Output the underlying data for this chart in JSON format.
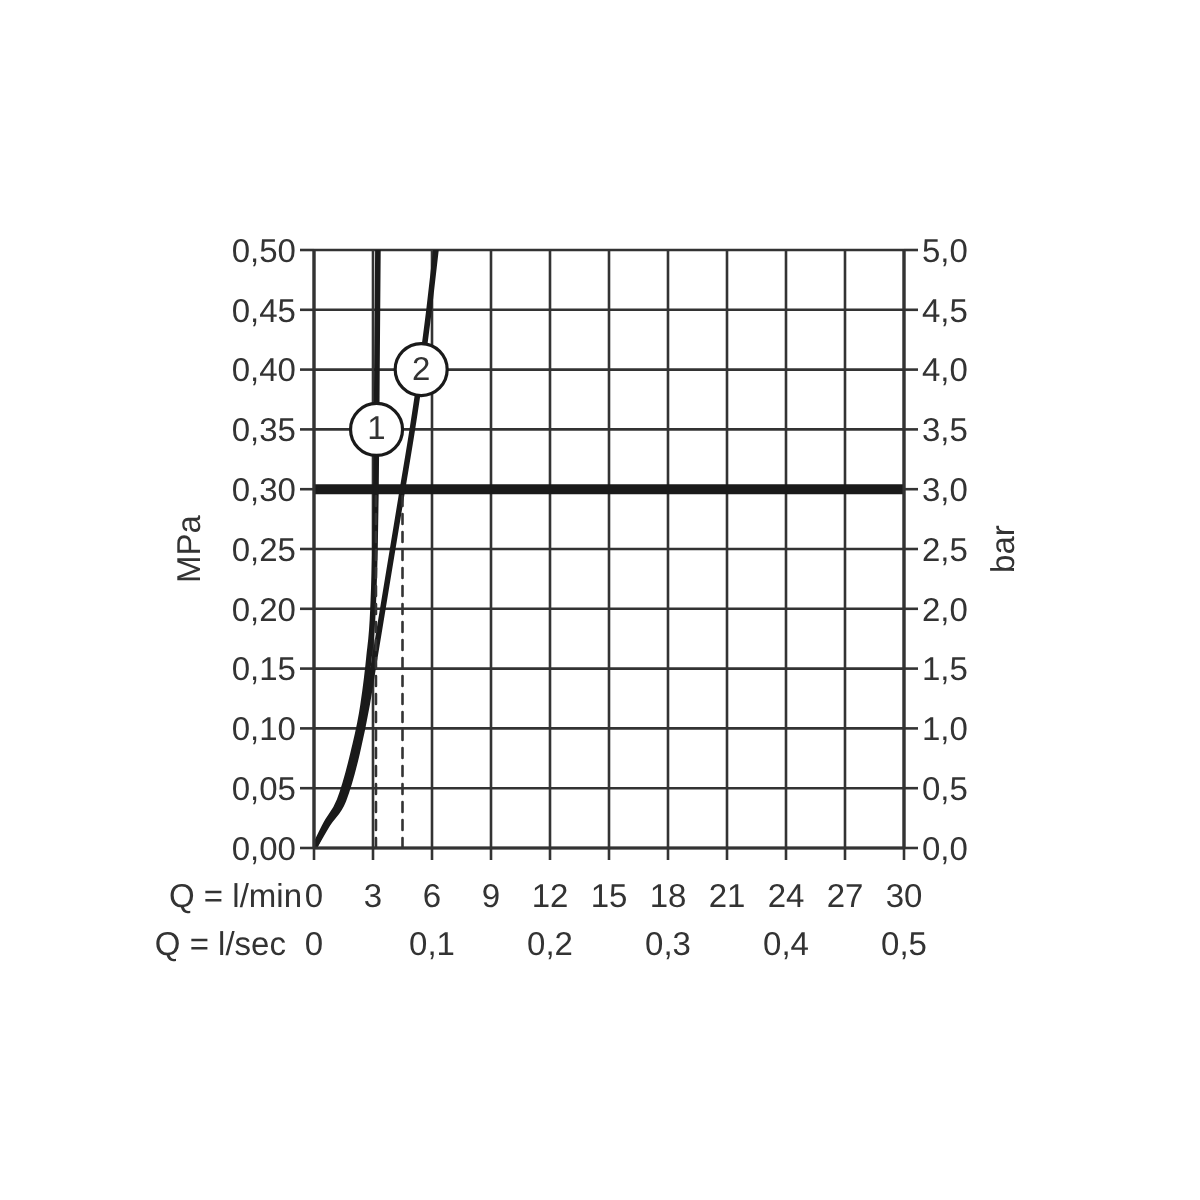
{
  "chart_data": {
    "type": "line",
    "xlabel": "Q = l/min",
    "x2label": "Q = l/sec",
    "ylabel": "MPa",
    "y2label": "bar",
    "xlim": [
      0,
      30
    ],
    "xticks": [
      0,
      3,
      6,
      9,
      12,
      15,
      18,
      21,
      24,
      27,
      30
    ],
    "x2lim": [
      0,
      0.5
    ],
    "x2ticks": [
      0,
      {
        "value": 0.1,
        "label": "0,1"
      },
      {
        "value": 0.2,
        "label": "0,2"
      },
      {
        "value": 0.3,
        "label": "0,3"
      },
      {
        "value": 0.4,
        "label": "0,4"
      },
      {
        "value": 0.5,
        "label": "0,5"
      }
    ],
    "ylim": [
      0,
      0.5
    ],
    "yticks": [
      {
        "value": 0,
        "label": "0,00"
      },
      {
        "value": 0.05,
        "label": "0,05"
      },
      {
        "value": 0.1,
        "label": "0,10"
      },
      {
        "value": 0.15,
        "label": "0,15"
      },
      {
        "value": 0.2,
        "label": "0,20"
      },
      {
        "value": 0.25,
        "label": "0,25"
      },
      {
        "value": 0.3,
        "label": "0,30"
      },
      {
        "value": 0.35,
        "label": "0,35"
      },
      {
        "value": 0.4,
        "label": "0,40"
      },
      {
        "value": 0.45,
        "label": "0,45"
      },
      {
        "value": 0.5,
        "label": "0,50"
      }
    ],
    "y2lim": [
      0,
      5
    ],
    "y2ticks": [
      {
        "value": 0,
        "label": "0,0"
      },
      {
        "value": 0.5,
        "label": "0,5"
      },
      {
        "value": 1,
        "label": "1,0"
      },
      {
        "value": 1.5,
        "label": "1,5"
      },
      {
        "value": 2,
        "label": "2,0"
      },
      {
        "value": 2.5,
        "label": "2,5"
      },
      {
        "value": 3,
        "label": "3,0"
      },
      {
        "value": 3.5,
        "label": "3,5"
      },
      {
        "value": 4,
        "label": "4,0"
      },
      {
        "value": 4.5,
        "label": "4,5"
      },
      {
        "value": 5,
        "label": "5,0"
      }
    ],
    "grid": true,
    "marker": "none",
    "ref_lines": [
      {
        "axis": "y",
        "value": 0.3,
        "color": "#1a1a1a"
      }
    ],
    "series": [
      {
        "name": "1",
        "color": "#1a1a1a",
        "x": [
          0,
          0.6,
          1.3,
          2.0,
          2.5,
          2.8,
          3.0,
          3.1,
          3.15,
          3.18,
          3.2,
          3.25
        ],
        "values": [
          0,
          0.02,
          0.04,
          0.08,
          0.12,
          0.16,
          0.2,
          0.25,
          0.3,
          0.35,
          0.4,
          0.5
        ]
      },
      {
        "name": "2",
        "color": "#1a1a1a",
        "x": [
          0,
          0.7,
          1.5,
          2.2,
          2.7,
          3.1,
          3.5,
          4.0,
          4.5,
          5.0,
          5.45,
          5.85,
          6.2
        ],
        "values": [
          0,
          0.02,
          0.04,
          0.08,
          0.12,
          0.16,
          0.2,
          0.25,
          0.3,
          0.35,
          0.4,
          0.45,
          0.5
        ]
      },
      {
        "type": "line",
        "line_style": "dashed",
        "color": "#333333",
        "x": [
          3.15,
          3.15
        ],
        "values": [
          0,
          0.3
        ]
      },
      {
        "type": "line",
        "line_style": "dashed",
        "color": "#333333",
        "x": [
          4.5,
          4.5
        ],
        "values": [
          0,
          0.3
        ]
      }
    ]
  }
}
